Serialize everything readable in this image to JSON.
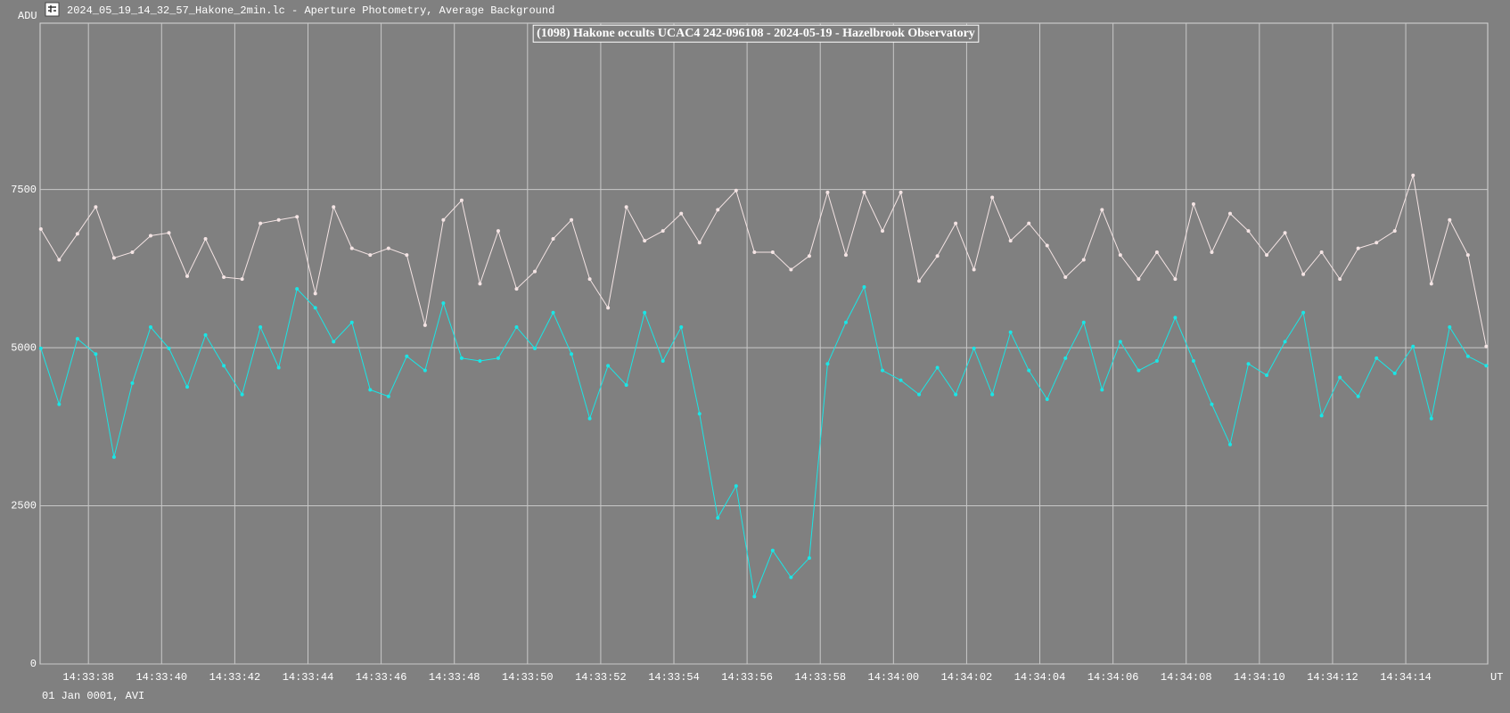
{
  "window_title": "2024_05_19_14_32_57_Hakone_2min.lc - Aperture Photometry, Average Background",
  "footer": "01 Jan 0001, AVI",
  "chart_data": {
    "type": "line",
    "title": "(1098) Hakone occults UCAC4 242-096108 - 2024-05-19 - Hazelbrook Observatory",
    "y_label": "ADU",
    "x_label": "UT",
    "grid": true,
    "markers": true,
    "x": [
      52416.7,
      52417.2,
      52417.7,
      52418.2,
      52418.7,
      52419.2,
      52419.7,
      52420.2,
      52420.7,
      52421.2,
      52421.7,
      52422.2,
      52422.7,
      52423.2,
      52423.7,
      52424.2,
      52424.7,
      52425.2,
      52425.7,
      52426.2,
      52426.7,
      52427.2,
      52427.7,
      52428.2,
      52428.7,
      52429.2,
      52429.7,
      52430.2,
      52430.7,
      52431.2,
      52431.7,
      52432.2,
      52432.7,
      52433.2,
      52433.7,
      52434.2,
      52434.7,
      52435.2,
      52435.7,
      52436.2,
      52436.7,
      52437.2,
      52437.7,
      52438.2,
      52438.7,
      52439.2,
      52439.7,
      52440.2,
      52440.7,
      52441.2,
      52441.7,
      52442.2,
      52442.7,
      52443.2,
      52443.7,
      52444.2,
      52444.7,
      52445.2,
      52445.7,
      52446.2,
      52446.7,
      52447.2,
      52447.7,
      52448.2,
      52448.7,
      52449.2,
      52449.7,
      52450.2,
      52450.7,
      52451.2,
      52451.7,
      52452.2,
      52452.7,
      52453.2,
      52453.7,
      52454.2,
      52454.7,
      52455.2,
      52455.7,
      52456.2
    ],
    "series": [
      {
        "color": "#f4e4e4",
        "values": [
          6875,
          6390,
          6800,
          7225,
          6420,
          6510,
          6770,
          6815,
          6130,
          6720,
          6115,
          6085,
          6965,
          7020,
          7070,
          5855,
          7225,
          6570,
          6465,
          6570,
          6465,
          5355,
          7020,
          7330,
          6010,
          6845,
          5930,
          6205,
          6720,
          7020,
          6085,
          5630,
          7225,
          6690,
          6845,
          7120,
          6660,
          7180,
          7485,
          6510,
          6510,
          6235,
          6450,
          7455,
          6465,
          7455,
          6845,
          7455,
          6055,
          6450,
          6965,
          6235,
          7375,
          6690,
          6965,
          6615,
          6115,
          6390,
          7180,
          6465,
          6085,
          6510,
          6085,
          7270,
          6510,
          7120,
          6845,
          6465,
          6815,
          6160,
          6510,
          6085,
          6570,
          6660,
          6845,
          7725,
          6010,
          7020,
          6465,
          5020
        ]
      },
      {
        "color": "#19e6e6",
        "values": [
          4990,
          4105,
          5140,
          4900,
          3270,
          4440,
          5325,
          4990,
          4380,
          5200,
          4715,
          4260,
          5325,
          4685,
          5930,
          5630,
          5095,
          5400,
          4335,
          4230,
          4865,
          4640,
          5705,
          4835,
          4790,
          4835,
          5325,
          4990,
          5555,
          4900,
          3880,
          4715,
          4410,
          5555,
          4790,
          5325,
          3955,
          2310,
          2815,
          1065,
          1795,
          1370,
          1675,
          4745,
          5400,
          5960,
          4640,
          4485,
          4260,
          4685,
          4260,
          4990,
          4260,
          5245,
          4640,
          4185,
          4835,
          5400,
          4335,
          5095,
          4640,
          4790,
          5475,
          4790,
          4105,
          3470,
          4745,
          4565,
          5095,
          5555,
          3925,
          4530,
          4230,
          4835,
          4595,
          5020,
          3880,
          5325,
          4865,
          4715
        ]
      }
    ],
    "xlim": [
      52416.68,
      52456.24
    ],
    "xticks": [
      {
        "value": 52418,
        "label": "14:33:38"
      },
      {
        "value": 52420,
        "label": "14:33:40"
      },
      {
        "value": 52422,
        "label": "14:33:42"
      },
      {
        "value": 52424,
        "label": "14:33:44"
      },
      {
        "value": 52426,
        "label": "14:33:46"
      },
      {
        "value": 52428,
        "label": "14:33:48"
      },
      {
        "value": 52430,
        "label": "14:33:50"
      },
      {
        "value": 52432,
        "label": "14:33:52"
      },
      {
        "value": 52434,
        "label": "14:33:54"
      },
      {
        "value": 52436,
        "label": "14:33:56"
      },
      {
        "value": 52438,
        "label": "14:33:58"
      },
      {
        "value": 52440,
        "label": "14:34:00"
      },
      {
        "value": 52442,
        "label": "14:34:02"
      },
      {
        "value": 52444,
        "label": "14:34:04"
      },
      {
        "value": 52446,
        "label": "14:34:06"
      },
      {
        "value": 52448,
        "label": "14:34:08"
      },
      {
        "value": 52450,
        "label": "14:34:10"
      },
      {
        "value": 52452,
        "label": "14:34:12"
      },
      {
        "value": 52454,
        "label": "14:34:14"
      }
    ],
    "ylim": [
      0,
      10130
    ],
    "yticks": [
      0,
      2500,
      5000,
      7500
    ]
  }
}
